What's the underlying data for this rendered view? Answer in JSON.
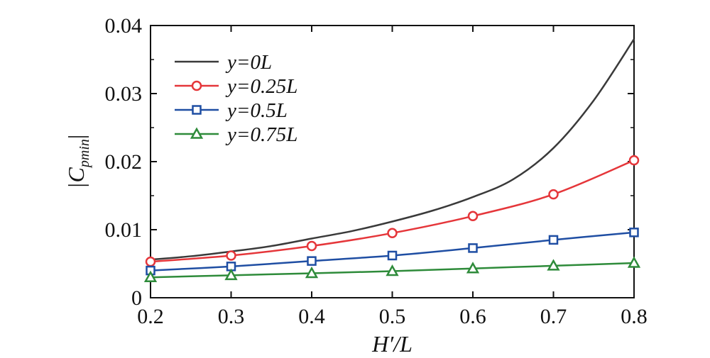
{
  "chart_data": {
    "type": "line",
    "title": "",
    "xlabel": {
      "main": "H′/L"
    },
    "ylabel": {
      "prefix": "|C",
      "sub": "pmin",
      "suffix": "|"
    },
    "xlim": [
      0.2,
      0.8
    ],
    "ylim": [
      0,
      0.04
    ],
    "xticks": [
      0.2,
      0.3,
      0.4,
      0.5,
      0.6,
      0.7,
      0.8
    ],
    "xtick_labels": [
      "0.2",
      "0.3",
      "0.4",
      "0.5",
      "0.6",
      "0.7",
      "0.8"
    ],
    "yticks": [
      0,
      0.01,
      0.02,
      0.03,
      0.04
    ],
    "ytick_labels": [
      "0",
      "0.01",
      "0.02",
      "0.03",
      "0.04"
    ],
    "grid": false,
    "legend_position": "top-left",
    "series": [
      {
        "name": "y=0L",
        "color": "#3a3a3a",
        "marker": "none",
        "x": [
          0.2,
          0.25,
          0.3,
          0.35,
          0.4,
          0.45,
          0.5,
          0.55,
          0.6,
          0.65,
          0.7,
          0.75,
          0.8
        ],
        "values": [
          0.0056,
          0.0061,
          0.0068,
          0.0076,
          0.0087,
          0.0098,
          0.0112,
          0.0128,
          0.0148,
          0.0174,
          0.022,
          0.029,
          0.038
        ]
      },
      {
        "name": "y=0.25L",
        "color": "#e5363a",
        "marker": "circle",
        "x": [
          0.2,
          0.3,
          0.4,
          0.5,
          0.6,
          0.7,
          0.8
        ],
        "values": [
          0.0053,
          0.0062,
          0.0076,
          0.0095,
          0.012,
          0.0152,
          0.0202
        ]
      },
      {
        "name": "y=0.5L",
        "color": "#1f4ea3",
        "marker": "square",
        "x": [
          0.2,
          0.3,
          0.4,
          0.5,
          0.6,
          0.7,
          0.8
        ],
        "values": [
          0.004,
          0.0046,
          0.0054,
          0.0062,
          0.0073,
          0.0085,
          0.0096
        ]
      },
      {
        "name": "y=0.75L",
        "color": "#2e8b3a",
        "marker": "triangle",
        "x": [
          0.2,
          0.3,
          0.4,
          0.5,
          0.6,
          0.7,
          0.8
        ],
        "values": [
          0.003,
          0.0033,
          0.0036,
          0.0039,
          0.0043,
          0.0047,
          0.0051
        ]
      }
    ]
  }
}
